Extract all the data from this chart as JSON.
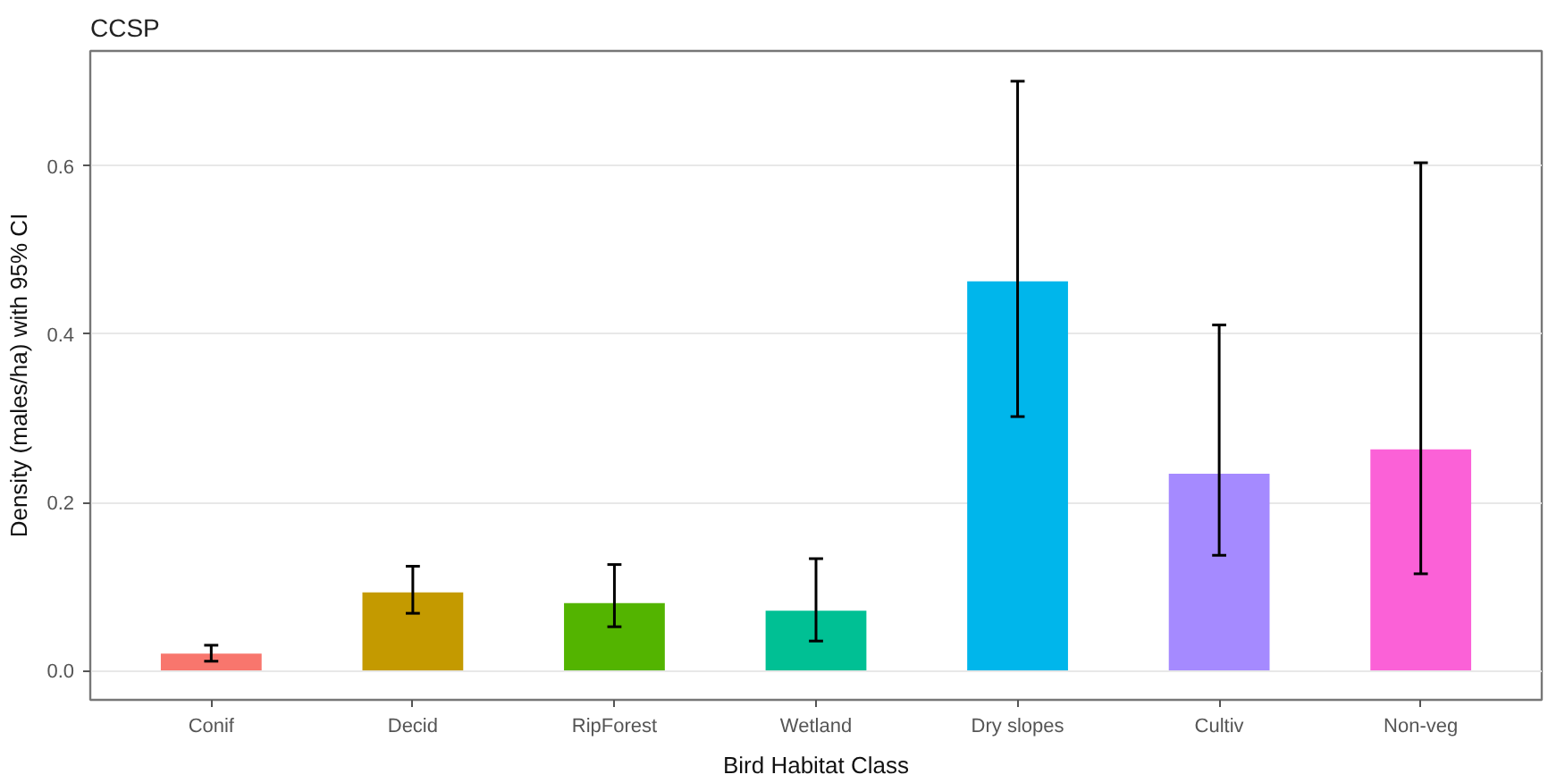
{
  "chart_data": {
    "type": "bar",
    "title": "CCSP",
    "xlabel": "Bird Habitat Class",
    "ylabel": "Density (males/ha) with 95% CI",
    "categories": [
      "Conif",
      "Decid",
      "RipForest",
      "Wetland",
      "Dry slopes",
      "Cultiv",
      "Non-veg"
    ],
    "values": [
      0.02,
      0.093,
      0.08,
      0.071,
      0.463,
      0.234,
      0.263
    ],
    "colors": [
      "#f8766d",
      "#c49a00",
      "#53b400",
      "#00c094",
      "#00b6eb",
      "#a58aff",
      "#fb61d7"
    ],
    "errors": [
      [
        0.011,
        0.03
      ],
      [
        0.068,
        0.124
      ],
      [
        0.052,
        0.126
      ],
      [
        0.035,
        0.133
      ],
      [
        0.302,
        0.701
      ],
      [
        0.137,
        0.411
      ],
      [
        0.115,
        0.604
      ]
    ],
    "ylim": [
      -0.035,
      0.737
    ],
    "yticks": [
      {
        "value": 0,
        "label": "0.0"
      },
      0.2,
      0.4,
      0.6
    ],
    "grid": "y"
  }
}
